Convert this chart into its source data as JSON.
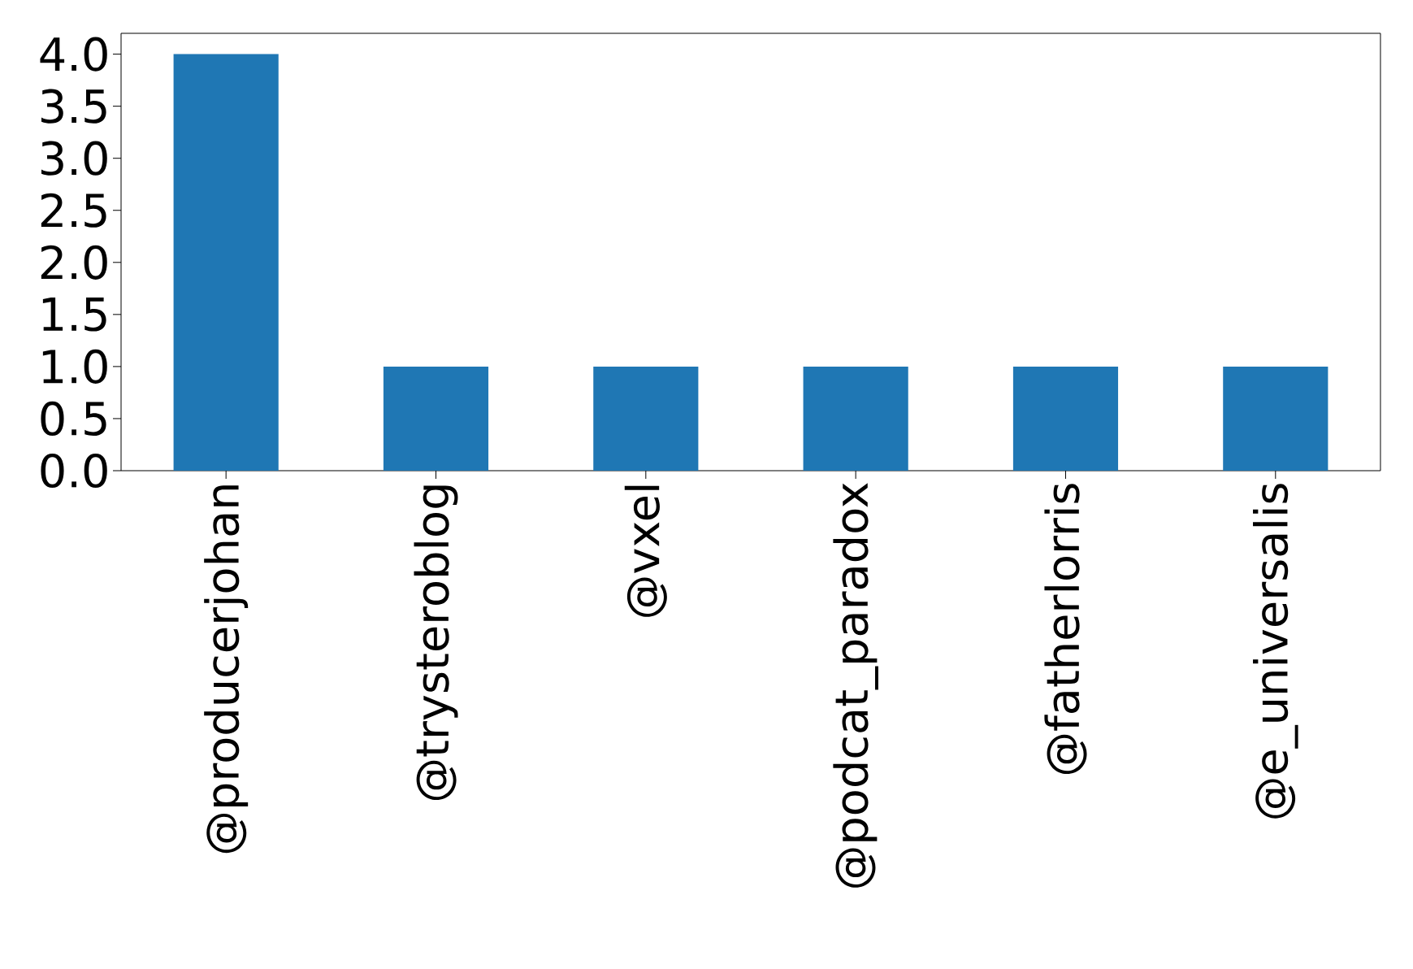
{
  "chart_data": {
    "type": "bar",
    "categories": [
      "@producerjohan",
      "@trysteroblog",
      "@vxel",
      "@podcat_paradox",
      "@fatherlorris",
      "@e_universalis"
    ],
    "values": [
      4,
      1,
      1,
      1,
      1,
      1
    ],
    "color": "#1f77b4",
    "ylim": [
      0,
      4.2
    ],
    "yticks": [
      {
        "value": 0,
        "label": "0.0"
      },
      {
        "value": 0.5,
        "label": "0.5"
      },
      {
        "value": 1,
        "label": "1.0"
      },
      {
        "value": 1.5,
        "label": "1.5"
      },
      {
        "value": 2,
        "label": "2.0"
      },
      {
        "value": 2.5,
        "label": "2.5"
      },
      {
        "value": 3,
        "label": "3.0"
      },
      {
        "value": 3.5,
        "label": "3.5"
      },
      {
        "value": 4,
        "label": "4.0"
      }
    ]
  }
}
